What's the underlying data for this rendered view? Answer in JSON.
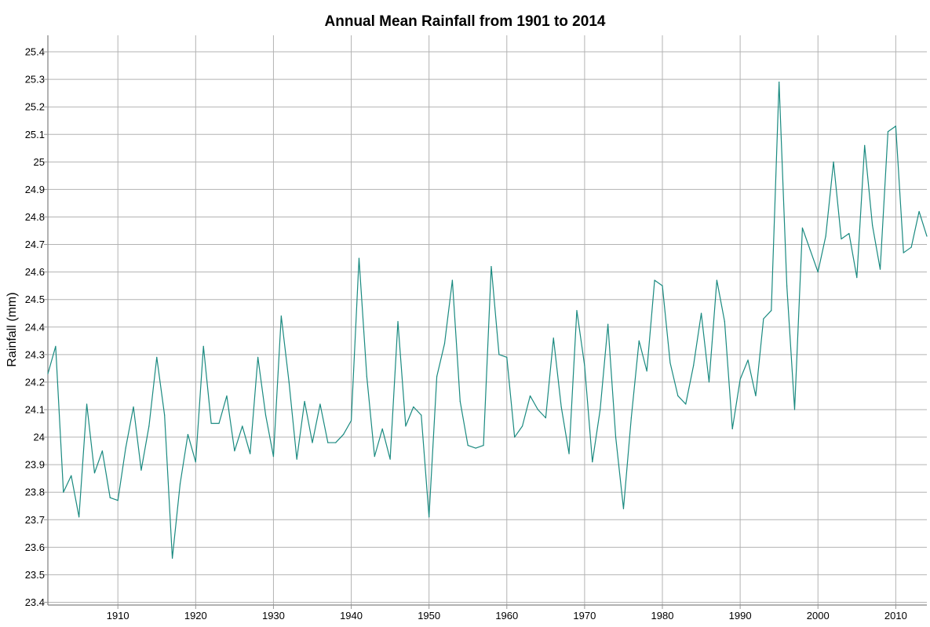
{
  "chart_data": {
    "type": "line",
    "title": "Annual Mean Rainfall from 1901 to 2014",
    "xlabel": "",
    "ylabel": "Rainfall (mm)",
    "xlim": [
      1901,
      2014
    ],
    "ylim": [
      23.39,
      25.46
    ],
    "xticks": [
      1910,
      1920,
      1930,
      1940,
      1950,
      1960,
      1970,
      1980,
      1990,
      2000,
      2010
    ],
    "yticks": [
      23.4,
      23.5,
      23.6,
      23.7,
      23.8,
      23.9,
      24,
      24.1,
      24.2,
      24.3,
      24.4,
      24.5,
      24.6,
      24.7,
      24.8,
      24.9,
      25,
      25.1,
      25.2,
      25.3,
      25.4
    ],
    "grid": true,
    "line_color": "#1a8a80",
    "series": [
      {
        "x": [
          1901,
          1902,
          1903,
          1904,
          1905,
          1906,
          1907,
          1908,
          1909,
          1910,
          1911,
          1912,
          1913,
          1914,
          1915,
          1916,
          1917,
          1918,
          1919,
          1920,
          1921,
          1922,
          1923,
          1924,
          1925,
          1926,
          1927,
          1928,
          1929,
          1930,
          1931,
          1932,
          1933,
          1934,
          1935,
          1936,
          1937,
          1938,
          1939,
          1940,
          1941,
          1942,
          1943,
          1944,
          1945,
          1946,
          1947,
          1948,
          1949,
          1950,
          1951,
          1952,
          1953,
          1954,
          1955,
          1956,
          1957,
          1958,
          1959,
          1960,
          1961,
          1962,
          1963,
          1964,
          1965,
          1966,
          1967,
          1968,
          1969,
          1970,
          1971,
          1972,
          1973,
          1974,
          1975,
          1976,
          1977,
          1978,
          1979,
          1980,
          1981,
          1982,
          1983,
          1984,
          1985,
          1986,
          1987,
          1988,
          1989,
          1990,
          1991,
          1992,
          1993,
          1994,
          1995,
          1996,
          1997,
          1998,
          1999,
          2000,
          2001,
          2002,
          2003,
          2004,
          2005,
          2006,
          2007,
          2008,
          2009,
          2010,
          2011,
          2012,
          2013,
          2014
        ],
        "values": [
          24.23,
          24.33,
          23.8,
          23.86,
          23.71,
          24.12,
          23.87,
          23.95,
          23.78,
          23.77,
          23.96,
          24.11,
          23.88,
          24.04,
          24.29,
          24.08,
          23.56,
          23.83,
          24.01,
          23.91,
          24.33,
          24.05,
          24.05,
          24.15,
          23.95,
          24.04,
          23.94,
          24.29,
          24.08,
          23.93,
          24.44,
          24.2,
          23.92,
          24.13,
          23.98,
          24.12,
          23.98,
          23.98,
          24.01,
          24.06,
          24.65,
          24.22,
          23.93,
          24.03,
          23.92,
          24.42,
          24.04,
          24.11,
          24.08,
          23.71,
          24.22,
          24.34,
          24.57,
          24.13,
          23.97,
          23.96,
          23.97,
          24.62,
          24.3,
          24.29,
          24.0,
          24.04,
          24.15,
          24.1,
          24.07,
          24.36,
          24.11,
          23.94,
          24.46,
          24.26,
          23.91,
          24.1,
          24.41,
          24.0,
          23.74,
          24.07,
          24.35,
          24.24,
          24.57,
          24.55,
          24.27,
          24.15,
          24.12,
          24.26,
          24.45,
          24.2,
          24.57,
          24.42,
          24.03,
          24.21,
          24.28,
          24.15,
          24.43,
          24.46,
          25.29,
          24.55,
          24.1,
          24.76,
          24.68,
          24.6,
          24.73,
          25.0,
          24.72,
          24.74,
          24.58,
          25.06,
          24.77,
          24.61,
          25.11,
          25.13,
          24.67,
          24.69,
          24.82,
          24.73
        ]
      }
    ]
  }
}
